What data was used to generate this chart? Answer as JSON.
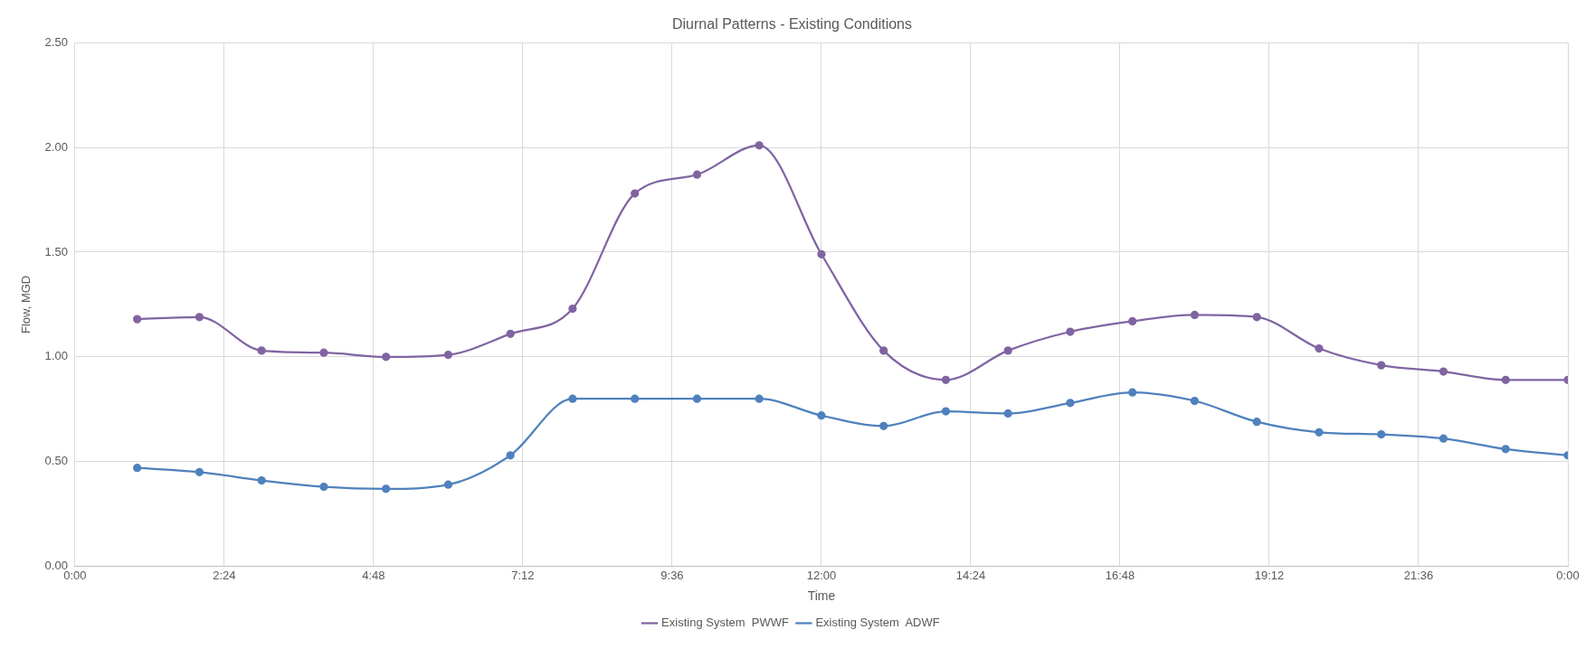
{
  "chart_data": {
    "type": "line",
    "title": "Diurnal Patterns - Existing Conditions",
    "xlabel": "Time",
    "ylabel": "Flow, MGD",
    "x": [
      1,
      2,
      3,
      4,
      5,
      6,
      7,
      8,
      9,
      10,
      11,
      12,
      13,
      14,
      15,
      16,
      17,
      18,
      19,
      20,
      21,
      22,
      23,
      24
    ],
    "series": [
      {
        "name": "Existing System  PWWF",
        "color": "#8064a2",
        "values": [
          1.18,
          1.19,
          1.03,
          1.02,
          1.0,
          1.01,
          1.11,
          1.23,
          1.78,
          1.87,
          2.01,
          1.49,
          1.03,
          0.89,
          1.03,
          1.12,
          1.17,
          1.2,
          1.19,
          1.04,
          0.96,
          0.93,
          0.89,
          0.89
        ]
      },
      {
        "name": "Existing System  ADWF",
        "color": "#4f81bd",
        "values": [
          0.47,
          0.45,
          0.41,
          0.38,
          0.37,
          0.39,
          0.53,
          0.8,
          0.8,
          0.8,
          0.8,
          0.72,
          0.67,
          0.74,
          0.73,
          0.78,
          0.83,
          0.79,
          0.69,
          0.64,
          0.63,
          0.61,
          0.56,
          0.53
        ]
      }
    ],
    "xlim": [
      0,
      24
    ],
    "xticks": [
      {
        "value": 0,
        "label": "0:00"
      },
      {
        "value": 2.4,
        "label": "2:24"
      },
      {
        "value": 4.8,
        "label": "4:48"
      },
      {
        "value": 7.2,
        "label": "7:12"
      },
      {
        "value": 9.6,
        "label": "9:36"
      },
      {
        "value": 12,
        "label": "12:00"
      },
      {
        "value": 14.4,
        "label": "14:24"
      },
      {
        "value": 16.8,
        "label": "16:48"
      },
      {
        "value": 19.2,
        "label": "19:12"
      },
      {
        "value": 21.6,
        "label": "21:36"
      },
      {
        "value": 24,
        "label": "0:00"
      }
    ],
    "ylim": [
      0,
      2.5
    ],
    "yticks": [
      {
        "value": 0,
        "label": "0.00"
      },
      {
        "value": 0.5,
        "label": "0.50"
      },
      {
        "value": 1,
        "label": "1.00"
      },
      {
        "value": 1.5,
        "label": "1.50"
      },
      {
        "value": 2,
        "label": "2.00"
      },
      {
        "value": 2.5,
        "label": "2.50"
      }
    ],
    "grid": true,
    "legend": "bottom",
    "marker": "circle",
    "line_style": "solid"
  }
}
